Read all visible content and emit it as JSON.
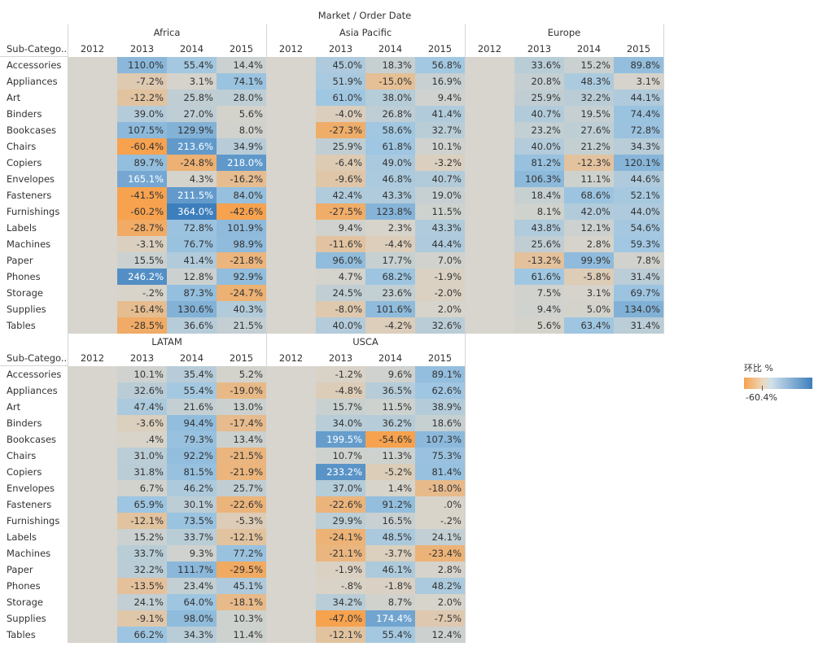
{
  "chart_data": {
    "type": "heatmap",
    "title": "Market / Order Date",
    "row_header_label": "Sub-Catego..",
    "years": [
      "2012",
      "2013",
      "2014",
      "2015"
    ],
    "rows": [
      "Accessories",
      "Appliances",
      "Art",
      "Binders",
      "Bookcases",
      "Chairs",
      "Copiers",
      "Envelopes",
      "Fasteners",
      "Furnishings",
      "Labels",
      "Machines",
      "Paper",
      "Phones",
      "Storage",
      "Supplies",
      "Tables"
    ],
    "legend": {
      "title": "环比 %",
      "min_label": "-60.4%"
    },
    "colors": {
      "low": "#f6a24f",
      "neutral": "#d8d4ca",
      "high": "#3d7fbd",
      "empty": "#d7d5cd"
    },
    "markets": [
      {
        "name": "Africa",
        "values": [
          [
            "110.0%",
            "55.4%",
            "14.4%"
          ],
          [
            "-7.2%",
            "3.1%",
            "74.1%"
          ],
          [
            "-12.2%",
            "25.8%",
            "28.0%"
          ],
          [
            "39.0%",
            "27.0%",
            "5.6%"
          ],
          [
            "107.5%",
            "129.9%",
            "8.0%"
          ],
          [
            "-60.4%",
            "213.6%",
            "34.9%"
          ],
          [
            "89.7%",
            "-24.8%",
            "218.0%"
          ],
          [
            "165.1%",
            "4.3%",
            "-16.2%"
          ],
          [
            "-41.5%",
            "211.5%",
            "84.0%"
          ],
          [
            "-60.2%",
            "364.0%",
            "-42.6%"
          ],
          [
            "-28.7%",
            "72.8%",
            "101.9%"
          ],
          [
            "-3.1%",
            "76.7%",
            "98.9%"
          ],
          [
            "15.5%",
            "41.4%",
            "-21.8%"
          ],
          [
            "246.2%",
            "12.8%",
            "92.9%"
          ],
          [
            "-.2%",
            "87.3%",
            "-24.7%"
          ],
          [
            "-16.4%",
            "130.6%",
            "40.3%"
          ],
          [
            "-28.5%",
            "36.6%",
            "21.5%"
          ]
        ]
      },
      {
        "name": "Asia Pacific",
        "values": [
          [
            "45.0%",
            "18.3%",
            "56.8%"
          ],
          [
            "51.9%",
            "-15.0%",
            "16.9%"
          ],
          [
            "61.0%",
            "38.0%",
            "9.4%"
          ],
          [
            "-4.0%",
            "26.8%",
            "41.4%"
          ],
          [
            "-27.3%",
            "58.6%",
            "32.7%"
          ],
          [
            "25.9%",
            "61.8%",
            "10.1%"
          ],
          [
            "-6.4%",
            "49.0%",
            "-3.2%"
          ],
          [
            "-9.6%",
            "46.8%",
            "40.7%"
          ],
          [
            "42.4%",
            "43.3%",
            "19.0%"
          ],
          [
            "-27.5%",
            "123.8%",
            "11.5%"
          ],
          [
            "9.4%",
            "2.3%",
            "43.3%"
          ],
          [
            "-11.6%",
            "-4.4%",
            "44.4%"
          ],
          [
            "96.0%",
            "17.7%",
            "7.0%"
          ],
          [
            "4.7%",
            "68.2%",
            "-1.9%"
          ],
          [
            "24.5%",
            "23.6%",
            "-2.0%"
          ],
          [
            "-8.0%",
            "101.6%",
            "2.0%"
          ],
          [
            "40.0%",
            "-4.2%",
            "32.6%"
          ]
        ]
      },
      {
        "name": "Europe",
        "values": [
          [
            "33.6%",
            "15.2%",
            "89.8%"
          ],
          [
            "20.8%",
            "48.3%",
            "3.1%"
          ],
          [
            "25.9%",
            "32.2%",
            "44.1%"
          ],
          [
            "40.7%",
            "19.5%",
            "74.4%"
          ],
          [
            "23.2%",
            "27.6%",
            "72.8%"
          ],
          [
            "40.0%",
            "21.2%",
            "34.3%"
          ],
          [
            "81.2%",
            "-12.3%",
            "120.1%"
          ],
          [
            "106.3%",
            "11.1%",
            "44.6%"
          ],
          [
            "18.4%",
            "68.6%",
            "52.1%"
          ],
          [
            "8.1%",
            "42.0%",
            "44.0%"
          ],
          [
            "43.8%",
            "12.1%",
            "54.6%"
          ],
          [
            "25.6%",
            "2.8%",
            "59.3%"
          ],
          [
            "-13.2%",
            "99.9%",
            "7.8%"
          ],
          [
            "61.6%",
            "-5.8%",
            "31.4%"
          ],
          [
            "7.5%",
            "3.1%",
            "69.7%"
          ],
          [
            "9.4%",
            "5.0%",
            "134.0%"
          ],
          [
            "5.6%",
            "63.4%",
            "31.4%"
          ]
        ]
      },
      {
        "name": "LATAM",
        "values": [
          [
            "10.1%",
            "35.4%",
            "5.2%"
          ],
          [
            "32.6%",
            "55.4%",
            "-19.0%"
          ],
          [
            "47.4%",
            "21.6%",
            "13.0%"
          ],
          [
            "-3.6%",
            "94.4%",
            "-17.4%"
          ],
          [
            ".4%",
            "79.3%",
            "13.4%"
          ],
          [
            "31.0%",
            "92.2%",
            "-21.5%"
          ],
          [
            "31.8%",
            "81.5%",
            "-21.9%"
          ],
          [
            "6.7%",
            "46.2%",
            "25.7%"
          ],
          [
            "65.9%",
            "30.1%",
            "-22.6%"
          ],
          [
            "-12.1%",
            "73.5%",
            "-5.3%"
          ],
          [
            "15.2%",
            "33.7%",
            "-12.1%"
          ],
          [
            "33.7%",
            "9.3%",
            "77.2%"
          ],
          [
            "32.2%",
            "111.7%",
            "-29.5%"
          ],
          [
            "-13.5%",
            "23.4%",
            "45.1%"
          ],
          [
            "24.1%",
            "64.0%",
            "-18.1%"
          ],
          [
            "-9.1%",
            "98.0%",
            "10.3%"
          ],
          [
            "66.2%",
            "34.3%",
            "11.4%"
          ]
        ]
      },
      {
        "name": "USCA",
        "values": [
          [
            "-1.2%",
            "9.6%",
            "89.1%"
          ],
          [
            "-4.8%",
            "36.5%",
            "62.6%"
          ],
          [
            "15.7%",
            "11.5%",
            "38.9%"
          ],
          [
            "34.0%",
            "36.2%",
            "18.6%"
          ],
          [
            "199.5%",
            "-54.6%",
            "107.3%"
          ],
          [
            "10.7%",
            "11.3%",
            "75.3%"
          ],
          [
            "233.2%",
            "-5.2%",
            "81.4%"
          ],
          [
            "37.0%",
            "1.4%",
            "-18.0%"
          ],
          [
            "-22.6%",
            "91.2%",
            ".0%"
          ],
          [
            "29.9%",
            "16.5%",
            "-.2%"
          ],
          [
            "-24.1%",
            "48.5%",
            "24.1%"
          ],
          [
            "-21.1%",
            "-3.7%",
            "-23.4%"
          ],
          [
            "-1.9%",
            "46.1%",
            "2.8%"
          ],
          [
            "-.8%",
            "-1.8%",
            "48.2%"
          ],
          [
            "34.2%",
            "8.7%",
            "2.0%"
          ],
          [
            "-47.0%",
            "174.4%",
            "-7.5%"
          ],
          [
            "-12.1%",
            "55.4%",
            "12.4%"
          ]
        ]
      }
    ]
  }
}
